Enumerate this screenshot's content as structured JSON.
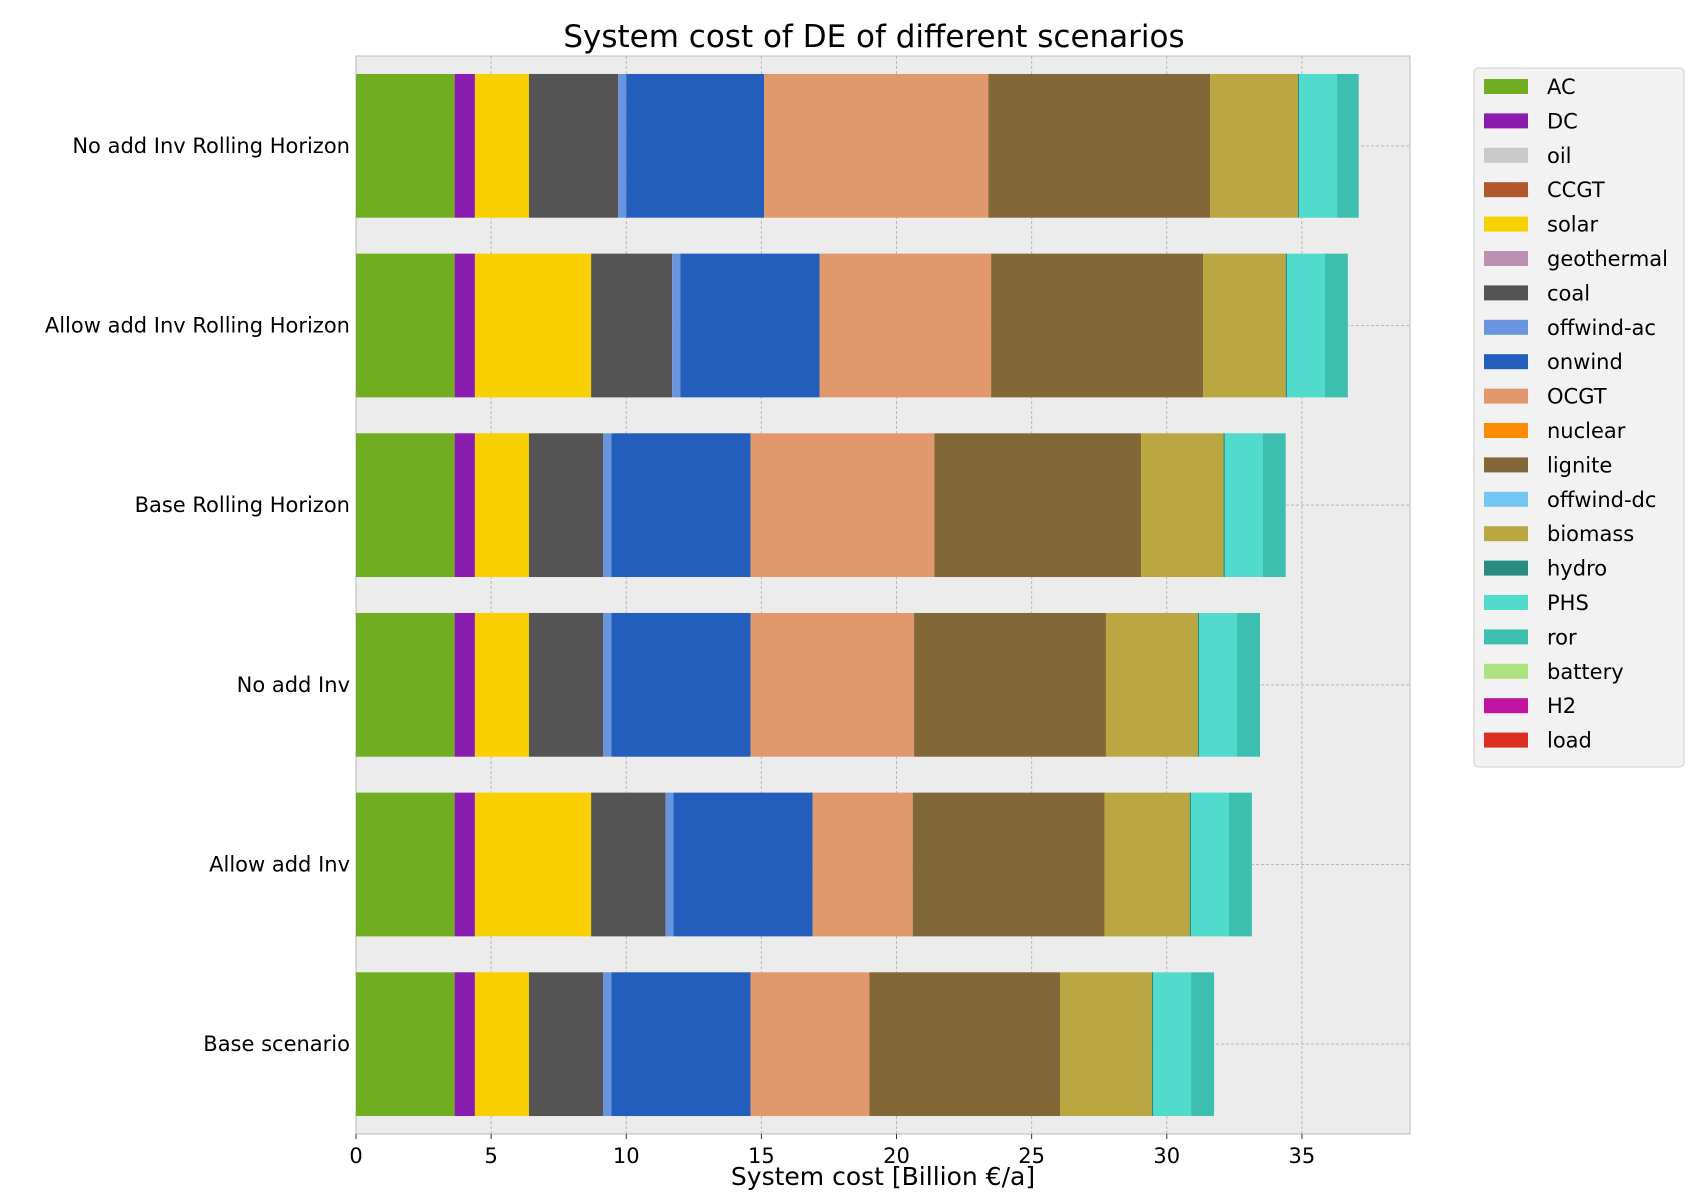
{
  "chart_data": {
    "type": "bar",
    "orientation": "horizontal",
    "stacked": true,
    "title": "System cost of DE of different scenarios",
    "xlabel": "System cost [Billion €/a]",
    "ylabel": "",
    "xlim": [
      0,
      39
    ],
    "xticks": [
      0,
      5,
      10,
      15,
      20,
      25,
      30,
      35
    ],
    "grid": true,
    "legend_position": "outside-right",
    "categories": [
      "No add Inv Rolling Horizon",
      "Allow add Inv Rolling Horizon",
      "Base Rolling Horizon",
      "No add Inv",
      "Allow add Inv",
      "Base scenario"
    ],
    "series": [
      {
        "name": "AC",
        "color": "#70ad20",
        "values": [
          3.65,
          3.65,
          3.65,
          3.65,
          3.65,
          3.65
        ]
      },
      {
        "name": "DC",
        "color": "#8a1caf",
        "values": [
          0.75,
          0.75,
          0.75,
          0.75,
          0.75,
          0.75
        ]
      },
      {
        "name": "oil",
        "color": "#c9c9c9",
        "values": [
          0,
          0,
          0,
          0,
          0,
          0
        ]
      },
      {
        "name": "CCGT",
        "color": "#b0582c",
        "values": [
          0,
          0,
          0,
          0,
          0,
          0
        ]
      },
      {
        "name": "solar",
        "color": "#f9d002",
        "values": [
          2.0,
          4.3,
          2.0,
          2.0,
          4.3,
          2.0
        ]
      },
      {
        "name": "geothermal",
        "color": "#ba91b1",
        "values": [
          0,
          0,
          0,
          0,
          0,
          0
        ]
      },
      {
        "name": "coal",
        "color": "#545454",
        "values": [
          3.3,
          3.0,
          2.75,
          2.75,
          2.75,
          2.75
        ]
      },
      {
        "name": "offwind-ac",
        "color": "#6895dd",
        "values": [
          0.3,
          0.3,
          0.3,
          0.3,
          0.3,
          0.3
        ]
      },
      {
        "name": "onwind",
        "color": "#235ebc",
        "values": [
          5.1,
          5.15,
          5.15,
          5.15,
          5.15,
          5.15
        ]
      },
      {
        "name": "OCGT",
        "color": "#e0986c",
        "values": [
          8.3,
          6.35,
          6.8,
          6.05,
          3.7,
          4.4
        ]
      },
      {
        "name": "nuclear",
        "color": "#ff8c00",
        "values": [
          0,
          0,
          0,
          0,
          0,
          0
        ]
      },
      {
        "name": "lignite",
        "color": "#826837",
        "values": [
          8.2,
          7.85,
          7.65,
          7.1,
          7.1,
          7.05
        ]
      },
      {
        "name": "offwind-dc",
        "color": "#74c6f2",
        "values": [
          0,
          0,
          0,
          0,
          0,
          0
        ]
      },
      {
        "name": "biomass",
        "color": "#baa741",
        "values": [
          3.25,
          3.05,
          3.05,
          3.4,
          3.15,
          3.4
        ]
      },
      {
        "name": "hydro",
        "color": "#298c81",
        "values": [
          0.05,
          0.05,
          0.05,
          0.05,
          0.05,
          0.05
        ]
      },
      {
        "name": "PHS",
        "color": "#51dbcc",
        "values": [
          1.4,
          1.4,
          1.4,
          1.4,
          1.4,
          1.4
        ]
      },
      {
        "name": "ror",
        "color": "#3dbfb0",
        "values": [
          0.8,
          0.85,
          0.85,
          0.85,
          0.85,
          0.85
        ]
      },
      {
        "name": "battery",
        "color": "#ace37f",
        "values": [
          0,
          0,
          0,
          0,
          0,
          0
        ]
      },
      {
        "name": "H2",
        "color": "#bf13a0",
        "values": [
          0,
          0,
          0,
          0,
          0,
          0
        ]
      },
      {
        "name": "load",
        "color": "#dd2e23",
        "values": [
          0,
          0,
          0,
          0,
          0,
          0
        ]
      }
    ]
  }
}
